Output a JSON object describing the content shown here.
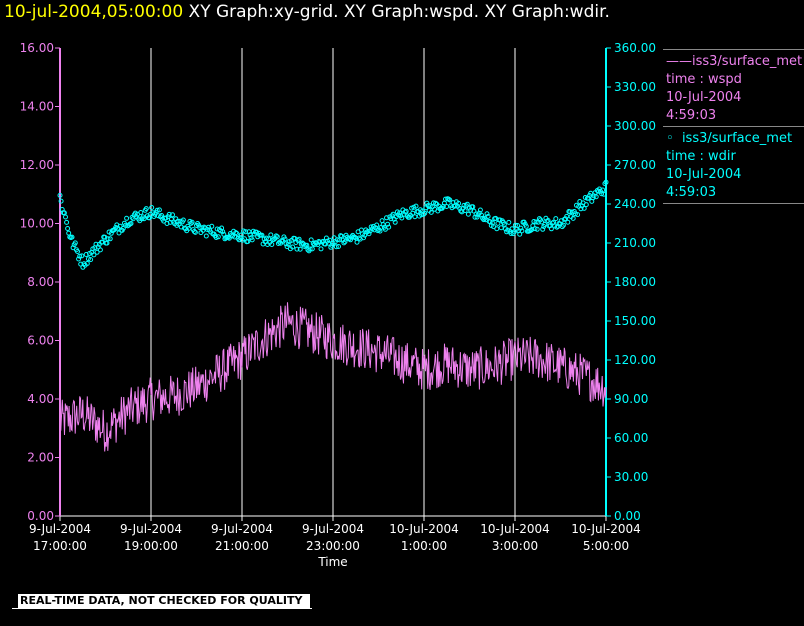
{
  "title": {
    "timestamp": "10-jul-2004,05:00:00",
    "graphs": "XY Graph:xy-grid.  XY Graph:wspd.  XY Graph:wdir."
  },
  "colors": {
    "wspd": "#ee82ee",
    "wdir": "#00ffff",
    "grid": "#ffffff",
    "timestamp": "#ffff00",
    "background": "#000000"
  },
  "legend": [
    {
      "marker": "line",
      "series": "iss3/surface_met",
      "var": "time : wspd",
      "date": "10-Jul-2004",
      "time": "4:59:03"
    },
    {
      "marker": "circle",
      "series": "iss3/surface_met",
      "var": "time : wdir",
      "date": "10-Jul-2004",
      "time": "4:59:03"
    }
  ],
  "footer": "REAL-TIME DATA, NOT CHECKED FOR QUALITY",
  "chart_data": {
    "type": "line",
    "xlabel": "Time",
    "x_ticks": [
      {
        "date": "9-Jul-2004",
        "time": "17:00:00"
      },
      {
        "date": "9-Jul-2004",
        "time": "19:00:00"
      },
      {
        "date": "9-Jul-2004",
        "time": "21:00:00"
      },
      {
        "date": "9-Jul-2004",
        "time": "23:00:00"
      },
      {
        "date": "10-Jul-2004",
        "time": "1:00:00"
      },
      {
        "date": "10-Jul-2004",
        "time": "3:00:00"
      },
      {
        "date": "10-Jul-2004",
        "time": "5:00:00"
      }
    ],
    "xlim": [
      "2004-07-09 17:00",
      "2004-07-10 05:00"
    ],
    "y_left": {
      "lim": [
        0,
        16
      ],
      "ticks": [
        "0.00",
        "2.00",
        "4.00",
        "6.00",
        "8.00",
        "10.00",
        "12.00",
        "14.00",
        "16.00"
      ]
    },
    "y_right": {
      "lim": [
        0,
        360
      ],
      "ticks": [
        "0.00",
        "30.00",
        "60.00",
        "90.00",
        "120.00",
        "150.00",
        "180.00",
        "210.00",
        "240.00",
        "270.00",
        "300.00",
        "330.00",
        "360.00"
      ]
    },
    "grid": "vertical lines at x ticks",
    "series": [
      {
        "name": "iss3/surface_met time : wspd",
        "axis": "left",
        "style": "line",
        "x": [
          "17:00",
          "17:30",
          "18:00",
          "18:30",
          "19:00",
          "19:30",
          "20:00",
          "20:30",
          "21:00",
          "21:30",
          "22:00",
          "22:30",
          "23:00",
          "23:30",
          "00:00",
          "00:30",
          "01:00",
          "01:30",
          "02:00",
          "02:30",
          "03:00",
          "03:30",
          "04:00",
          "04:30",
          "05:00"
        ],
        "values": [
          3.2,
          3.5,
          2.9,
          3.6,
          4.0,
          4.1,
          4.4,
          4.9,
          5.4,
          6.1,
          6.6,
          6.3,
          6.0,
          5.8,
          5.6,
          5.3,
          5.0,
          5.2,
          5.0,
          5.1,
          5.4,
          5.4,
          5.1,
          4.8,
          4.4
        ]
      },
      {
        "name": "iss3/surface_met time : wdir",
        "axis": "right",
        "style": "points",
        "x": [
          "17:00",
          "17:15",
          "17:30",
          "18:00",
          "18:30",
          "19:00",
          "19:30",
          "20:00",
          "20:30",
          "21:00",
          "21:30",
          "22:00",
          "22:30",
          "23:00",
          "23:30",
          "00:00",
          "00:30",
          "01:00",
          "01:30",
          "02:00",
          "02:30",
          "03:00",
          "03:30",
          "04:00",
          "04:30",
          "05:00"
        ],
        "values": [
          245,
          212,
          195,
          213,
          228,
          234,
          227,
          221,
          218,
          216,
          213,
          210,
          208,
          211,
          214,
          222,
          232,
          236,
          240,
          236,
          226,
          220,
          225,
          225,
          240,
          253
        ]
      }
    ]
  }
}
